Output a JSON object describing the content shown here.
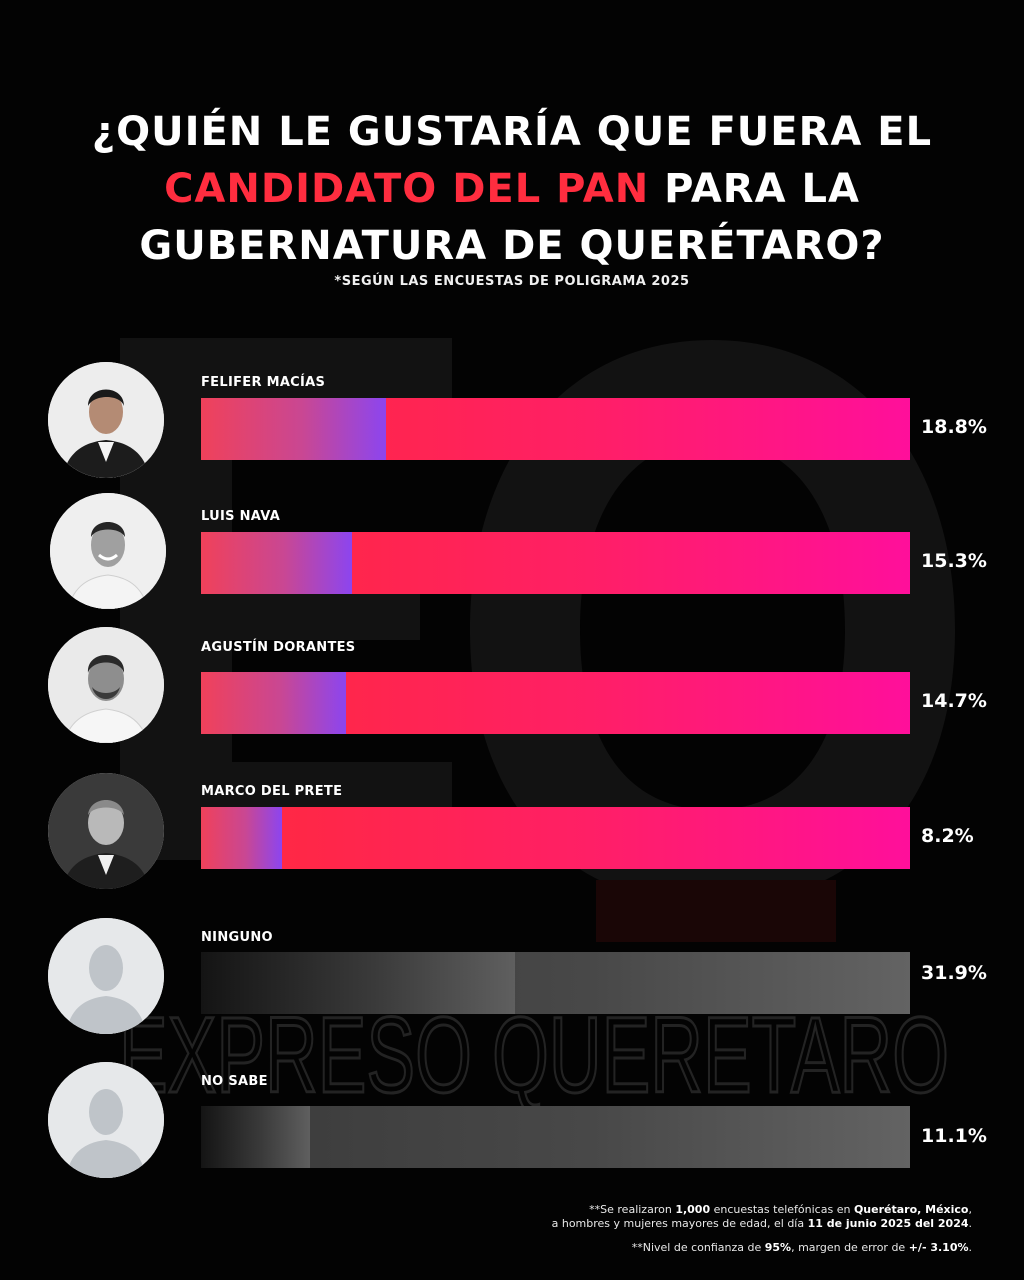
{
  "title": {
    "line1": "¿QUIÉN LE GUSTARÍA QUE FUERA EL",
    "line2_accent": "CANDIDATO DEL PAN",
    "line2_rest": " PARA LA",
    "line3": "GUBERNATURA DE QUERÉTARO?"
  },
  "subtitle": "*SEGÚN LAS ENCUESTAS DE POLIGRAMA 2025",
  "watermark": {
    "brand": "EXPRESO QUERETARO",
    "monogram": "EQ"
  },
  "colors": {
    "accent": "#ff2d3f",
    "bar_track": "#ff1f66",
    "bar_fill_end": "#8c45ef",
    "gray_track": "#484848"
  },
  "chart_data": {
    "type": "bar",
    "orientation": "horizontal",
    "categories": [
      "FELIFER MACÍAS",
      "LUIS NAVA",
      "AGUSTÍN DORANTES",
      "MARCO DEL PRETE",
      "NINGUNO",
      "NO SABE"
    ],
    "values": [
      18.8,
      15.3,
      14.7,
      8.2,
      31.9,
      11.1
    ],
    "value_labels": [
      "18.8%",
      "15.3%",
      "14.7%",
      "8.2%",
      "31.9%",
      "11.1%"
    ],
    "xlim": [
      0,
      72
    ],
    "unit": "%",
    "grid": false,
    "legend": "none"
  },
  "footnotes": {
    "n1_pre": "**Se realizaron ",
    "n1_count": "1,000",
    "n1_mid": " encuestas telefónicas en ",
    "n1_place": "Querétaro, México",
    "n1_end": ",",
    "n2_pre": "a hombres y mujeres mayores de edad, el día ",
    "n2_date": "11 de junio 2025 del 2024",
    "n2_end": ".",
    "n3_pre": "**Nivel de confianza de ",
    "n3_conf": "95%",
    "n3_mid": ", margen de error de ",
    "n3_err": "+/- 3.10%",
    "n3_end": "."
  }
}
